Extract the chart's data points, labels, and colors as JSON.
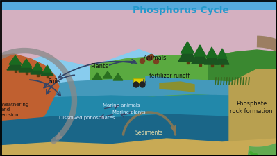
{
  "title": "Phosphorus Cycle",
  "title_color": "#2299cc",
  "title_fontsize": 10,
  "colors": {
    "sky_blue": "#88ccee",
    "sky_top": "#55aadd",
    "pink_mountain": "#d4b0c0",
    "green_land": "#5aaa40",
    "green_dark": "#3a8830",
    "brown_soil": "#c06030",
    "water_light": "#4499bb",
    "water_mid": "#2288aa",
    "water_deep": "#1a6688",
    "sand": "#c8aa55",
    "sand_right": "#b8a050",
    "olive_delta": "#8a9030",
    "tree_dark": "#1a5520",
    "tree_mid": "#1a6a20",
    "trunk": "#5a3a10",
    "shrub": "#2a7020",
    "animal": "#7a4020",
    "tractor_yellow": "#ddcc00",
    "tractor_wheel": "#222222",
    "seagrass": "#3a6a20",
    "arrow_dark": "#334466",
    "arrow_gray": "#888888",
    "arrow_tan": "#887755",
    "label_dark": "#111111",
    "label_water": "#ddeeff",
    "label_sand": "#ddd8aa",
    "border": "#000000"
  },
  "labels": {
    "plants": "Plants",
    "animals": "Animals",
    "soils": "Soils",
    "weathering": "Weathering\nand\nerosion",
    "fertilizer": "fertilizer runoff",
    "marine_animals": "Marine animals",
    "marine_plants": "Marine plants",
    "dissolved": "Dissolved pohosphates",
    "sediments": "Sediments",
    "phosphate_rock": "Phosphate\nrock formation"
  }
}
